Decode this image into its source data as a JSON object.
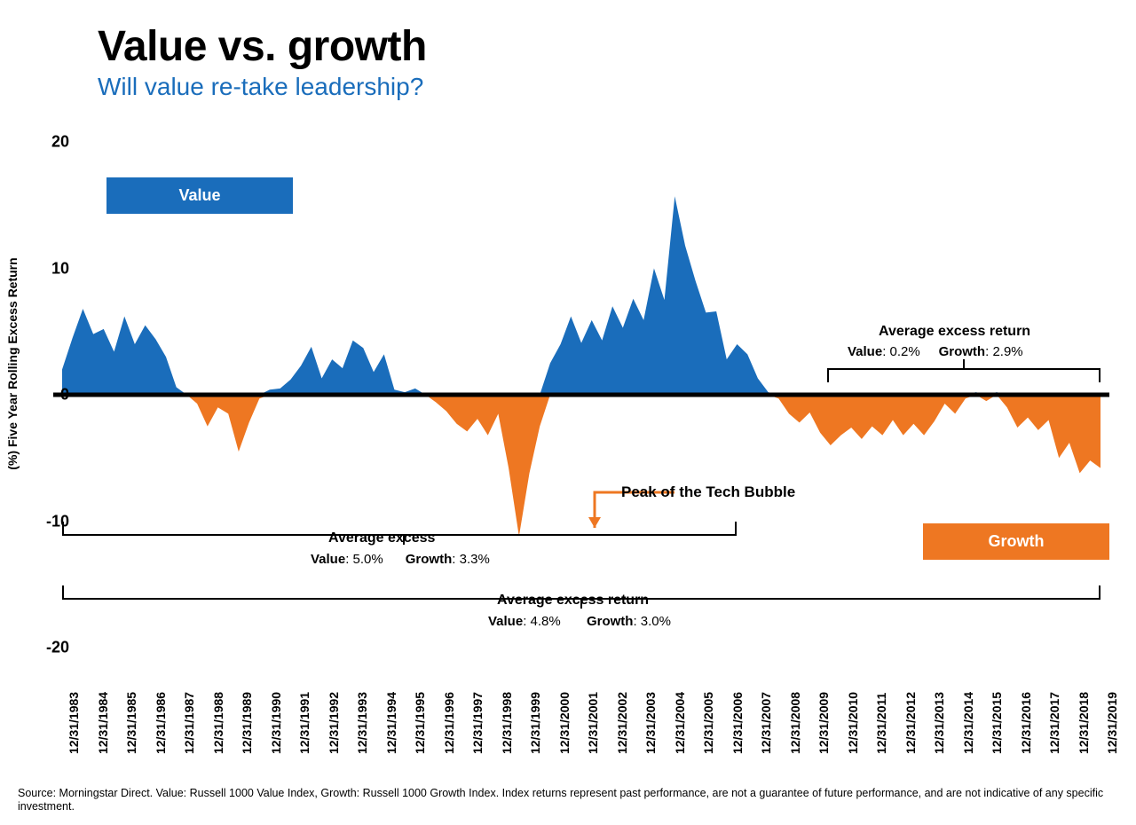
{
  "title": "Value vs. growth",
  "subtitle": "Will value re-take leadership?",
  "chart": {
    "type": "area-diverging",
    "yaxis": {
      "title": "(%) Five Year Rolling Excess Return",
      "min": -20,
      "max": 20,
      "ticks": [
        -20,
        -10,
        0,
        10,
        20
      ],
      "tick_fontsize": 18
    },
    "xaxis": {
      "labels": [
        "12/31/1983",
        "12/31/1984",
        "12/31/1985",
        "12/31/1986",
        "12/31/1987",
        "12/31/1988",
        "12/31/1989",
        "12/31/1990",
        "12/31/1991",
        "12/31/1992",
        "12/31/1993",
        "12/31/1994",
        "12/31/1995",
        "12/31/1996",
        "12/31/1997",
        "12/31/1998",
        "12/31/1999",
        "12/31/2000",
        "12/31/2001",
        "12/31/2002",
        "12/31/2003",
        "12/31/2004",
        "12/31/2005",
        "12/31/2006",
        "12/31/2007",
        "12/31/2008",
        "12/31/2009",
        "12/31/2010",
        "12/31/2011",
        "12/31/2012",
        "12/31/2013",
        "12/31/2014",
        "12/31/2015",
        "12/31/2016",
        "12/31/2017",
        "12/31/2018",
        "12/31/2019"
      ],
      "label_fontsize": 14
    },
    "colors": {
      "value": "#1a6dbb",
      "growth": "#ee7722",
      "baseline": "#000000",
      "background": "#ffffff"
    },
    "legend": {
      "value": "Value",
      "growth": "Growth"
    },
    "series_y": [
      2,
      4.5,
      6.8,
      4.8,
      5.2,
      3.4,
      6.2,
      4,
      5.5,
      4.4,
      3,
      0.6,
      0,
      -0.7,
      -2.5,
      -1,
      -1.5,
      -4.5,
      -2.2,
      -0.3,
      0.4,
      0.5,
      1.2,
      2.3,
      3.8,
      1.3,
      2.8,
      2.1,
      4.3,
      3.7,
      1.8,
      3.2,
      0.4,
      0.2,
      0.5,
      0,
      -0.6,
      -1.3,
      -2.3,
      -2.9,
      -1.9,
      -3.2,
      -1.5,
      -5.8,
      -11.2,
      -6.2,
      -2.5,
      2.5,
      4,
      6.2,
      4.1,
      5.9,
      4.3,
      7,
      5.3,
      7.6,
      5.9,
      10,
      7.5,
      15.7,
      11.8,
      9,
      6.5,
      6.6,
      2.8,
      4,
      3.2,
      1.3,
      0.2,
      -0.3,
      -1.5,
      -2.2,
      -1.4,
      -3,
      -4,
      -3.2,
      -2.6,
      -3.5,
      -2.5,
      -3.2,
      -2,
      -3.2,
      -2.3,
      -3.2,
      -2.1,
      -0.7,
      -1.5,
      -0.3,
      0.2,
      -0.5,
      0.2,
      -1,
      -2.6,
      -1.8,
      -2.8,
      -2,
      -5,
      -3.8,
      -6.2,
      -5.2,
      -5.8
    ],
    "baseline_width": 5
  },
  "annotations": {
    "tech_bubble": "Peak of the Tech Bubble",
    "period1": {
      "title": "Average excess",
      "value": "5.0%",
      "growth": "3.3%",
      "label_value": "Value",
      "label_growth": "Growth"
    },
    "period2": {
      "title": "Average excess return",
      "value": "0.2%",
      "growth": "2.9%",
      "label_value": "Value",
      "label_growth": "Growth"
    },
    "full": {
      "title": "Average excess return",
      "value": "4.8%",
      "growth": "3.0%",
      "label_value": "Value",
      "label_growth": "Growth"
    }
  },
  "source": "Source: Morningstar Direct. Value: Russell 1000 Value Index, Growth: Russell 1000 Growth Index. Index returns represent past performance, are not a guarantee of future performance, and are not indicative of any specific investment."
}
